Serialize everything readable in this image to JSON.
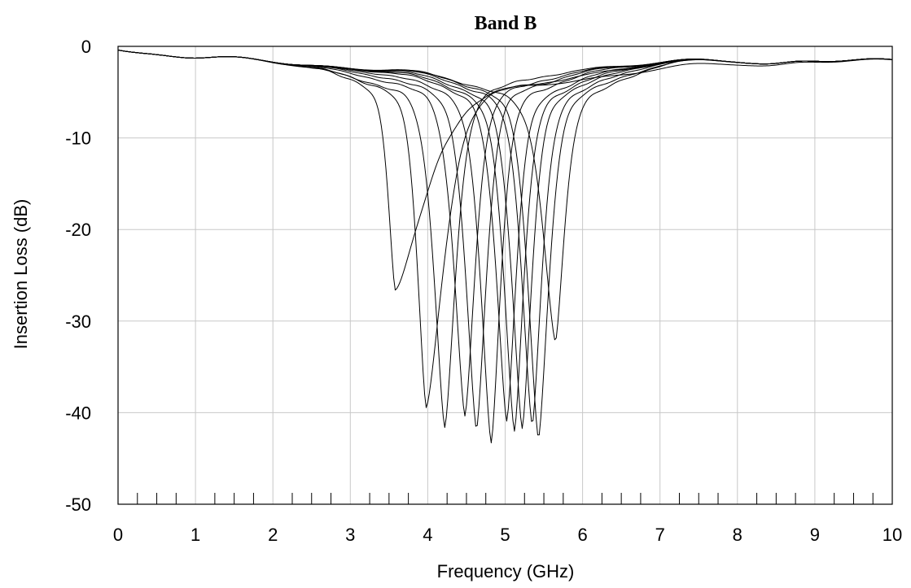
{
  "chart_data": {
    "type": "line",
    "title": "Band B",
    "xlabel": "Frequency (GHz)",
    "ylabel": "Insertion Loss (dB)",
    "xlim": [
      0,
      10
    ],
    "ylim": [
      -50,
      0
    ],
    "x_ticks": [
      0,
      1,
      2,
      3,
      4,
      5,
      6,
      7,
      8,
      9,
      10
    ],
    "y_ticks": [
      0,
      -10,
      -20,
      -30,
      -40,
      -50
    ],
    "x_tick_labels": [
      "0",
      "1",
      "2",
      "3",
      "4",
      "5",
      "6",
      "7",
      "8",
      "9",
      "10"
    ],
    "y_tick_labels": [
      "0",
      "-10",
      "-20",
      "-30",
      "-40",
      "-50"
    ],
    "grid": true,
    "legend": "none",
    "line_color": "#000000",
    "series": [
      {
        "notch_freq": 3.58,
        "notch_depth": -26.5,
        "skirt_height": -2.5,
        "width_left": 0.22,
        "width_right": 0.95
      },
      {
        "notch_freq": 3.98,
        "notch_depth": -39.4,
        "skirt_height": -3.2,
        "width_left": 0.28,
        "width_right": 0.55
      },
      {
        "notch_freq": 4.22,
        "notch_depth": -41.5,
        "skirt_height": -3.3,
        "width_left": 0.34,
        "width_right": 0.34
      },
      {
        "notch_freq": 4.48,
        "notch_depth": -40.3,
        "skirt_height": -3.4,
        "width_left": 0.34,
        "width_right": 0.32
      },
      {
        "notch_freq": 4.63,
        "notch_depth": -42.0,
        "skirt_height": -3.5,
        "width_left": 0.33,
        "width_right": 0.31
      },
      {
        "notch_freq": 4.82,
        "notch_depth": -43.2,
        "skirt_height": -3.6,
        "width_left": 0.33,
        "width_right": 0.3
      },
      {
        "notch_freq": 5.02,
        "notch_depth": -40.9,
        "skirt_height": -3.7,
        "width_left": 0.33,
        "width_right": 0.3
      },
      {
        "notch_freq": 5.12,
        "notch_depth": -42.0,
        "skirt_height": -3.8,
        "width_left": 0.33,
        "width_right": 0.3
      },
      {
        "notch_freq": 5.22,
        "notch_depth": -41.8,
        "skirt_height": -3.8,
        "width_left": 0.33,
        "width_right": 0.3
      },
      {
        "notch_freq": 5.35,
        "notch_depth": -41.3,
        "skirt_height": -3.9,
        "width_left": 0.33,
        "width_right": 0.3
      },
      {
        "notch_freq": 5.43,
        "notch_depth": -43.0,
        "skirt_height": -3.9,
        "width_left": 0.33,
        "width_right": 0.32
      },
      {
        "notch_freq": 5.65,
        "notch_depth": -32.3,
        "skirt_height": -4.0,
        "width_left": 0.38,
        "width_right": 0.28
      }
    ]
  }
}
